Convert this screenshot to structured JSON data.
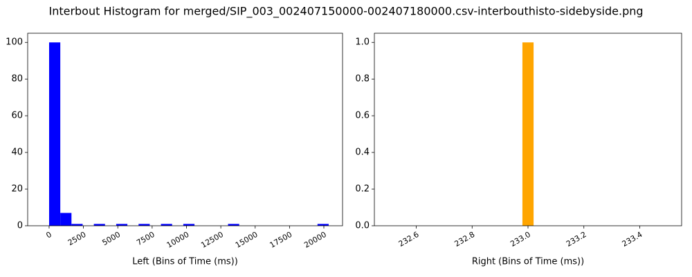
{
  "title": "Interbout Histogram for merged/SIP_003_002407150000-002407180000.csv-interbouthisto-sidebyside.png",
  "chart_data": [
    {
      "type": "histogram",
      "xlabel": "Left (Bins of Time (ms))",
      "color": "#0000ff",
      "bins": [
        0,
        814,
        1628,
        2442,
        3256,
        4070,
        4884,
        5698,
        6512,
        7326,
        8140,
        8954,
        9768,
        10582,
        11396,
        12210,
        13024,
        13838,
        14652,
        15466,
        16280,
        17094,
        17908,
        18722,
        19536,
        20350
      ],
      "values": [
        100,
        7,
        1,
        0,
        1,
        0,
        1,
        0,
        1,
        0,
        1,
        0,
        1,
        0,
        0,
        0,
        1,
        0,
        0,
        0,
        0,
        0,
        0,
        0,
        1
      ],
      "xlim": [
        -1560,
        21360
      ],
      "ylim": [
        0,
        105
      ],
      "xticks": [
        0,
        2500,
        5000,
        7500,
        10000,
        12500,
        15000,
        17500,
        20000
      ],
      "yticks": [
        0,
        20,
        40,
        60,
        80,
        100
      ]
    },
    {
      "type": "histogram",
      "xlabel": "Right (Bins of Time (ms))",
      "color": "#ffa500",
      "bins": [
        232.5,
        232.54,
        232.58,
        232.62,
        232.66,
        232.7,
        232.74,
        232.78,
        232.82,
        232.86,
        232.9,
        232.94,
        232.98,
        233.02,
        233.06,
        233.1,
        233.14,
        233.18,
        233.22,
        233.26,
        233.3,
        233.34,
        233.38,
        233.42,
        233.46,
        233.5
      ],
      "values": [
        0,
        0,
        0,
        0,
        0,
        0,
        0,
        0,
        0,
        0,
        0,
        0,
        1,
        0,
        0,
        0,
        0,
        0,
        0,
        0,
        0,
        0,
        0,
        0,
        0
      ],
      "xlim": [
        232.45,
        233.55
      ],
      "ylim": [
        0,
        1.05
      ],
      "xticks": [
        232.6,
        232.8,
        {
          "value": 233.0,
          "label": "233.0"
        },
        233.2,
        233.4
      ],
      "yticks": [
        {
          "value": 0,
          "label": "0.0"
        },
        {
          "value": 0.2,
          "label": "0.2"
        },
        {
          "value": 0.4,
          "label": "0.4"
        },
        {
          "value": 0.6,
          "label": "0.6"
        },
        {
          "value": 0.8,
          "label": "0.8"
        },
        {
          "value": 1.0,
          "label": "1.0"
        }
      ]
    }
  ]
}
